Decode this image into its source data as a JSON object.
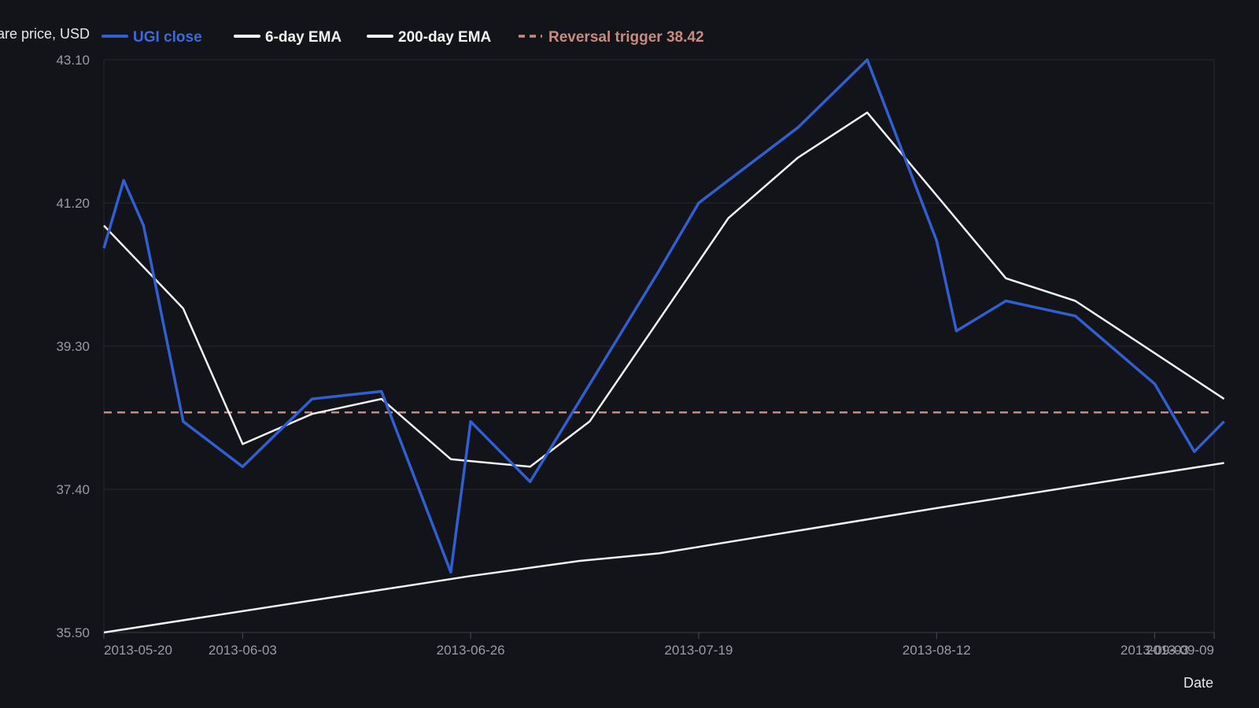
{
  "chart_data": {
    "type": "line",
    "title": "",
    "ylabel": "Share price, USD",
    "xlabel": "Date",
    "ylim": [
      35.5,
      43.1
    ],
    "yticks": [
      "35.50",
      "37.40",
      "39.30",
      "41.20",
      "43.10"
    ],
    "xlim": [
      "2013-05-20",
      "2013-09-09"
    ],
    "xticks": [
      "2013-05-20",
      "2013-06-03",
      "2013-06-26",
      "2013-07-19",
      "2013-08-12",
      "2013-09-03",
      "2013-09-09"
    ],
    "grid": true,
    "legend": "top",
    "reference_line": {
      "label": "Reversal trigger 38.42",
      "value": 38.42,
      "color": "#c98a7f",
      "style": "dashed"
    },
    "series": [
      {
        "name": "UGI close",
        "color": "#2f5fd0",
        "points": [
          [
            "2013-05-20",
            40.6
          ],
          [
            "2013-05-22",
            41.5
          ],
          [
            "2013-05-24",
            40.9
          ],
          [
            "2013-05-28",
            38.3
          ],
          [
            "2013-06-03",
            37.7
          ],
          [
            "2013-06-10",
            38.6
          ],
          [
            "2013-06-17",
            38.7
          ],
          [
            "2013-06-24",
            36.3
          ],
          [
            "2013-06-26",
            38.3
          ],
          [
            "2013-07-02",
            37.5
          ],
          [
            "2013-07-15",
            40.3
          ],
          [
            "2013-07-19",
            41.2
          ],
          [
            "2013-07-29",
            42.2
          ],
          [
            "2013-08-05",
            43.1
          ],
          [
            "2013-08-12",
            40.7
          ],
          [
            "2013-08-14",
            39.5
          ],
          [
            "2013-08-19",
            39.9
          ],
          [
            "2013-08-26",
            39.7
          ],
          [
            "2013-09-03",
            38.8
          ],
          [
            "2013-09-07",
            37.9
          ],
          [
            "2013-09-10",
            38.3
          ]
        ]
      },
      {
        "name": "6-day EMA",
        "color": "#f2f2f2",
        "points": [
          [
            "2013-05-20",
            40.9
          ],
          [
            "2013-05-28",
            39.8
          ],
          [
            "2013-06-03",
            38.0
          ],
          [
            "2013-06-10",
            38.4
          ],
          [
            "2013-06-17",
            38.6
          ],
          [
            "2013-06-24",
            37.8
          ],
          [
            "2013-07-02",
            37.7
          ],
          [
            "2013-07-08",
            38.3
          ],
          [
            "2013-07-22",
            41.0
          ],
          [
            "2013-07-29",
            41.8
          ],
          [
            "2013-08-05",
            42.4
          ],
          [
            "2013-08-12",
            41.3
          ],
          [
            "2013-08-19",
            40.2
          ],
          [
            "2013-08-26",
            39.9
          ],
          [
            "2013-09-10",
            38.6
          ]
        ]
      },
      {
        "name": "200-day EMA",
        "color": "#f2f2f2",
        "points": [
          [
            "2013-05-20",
            35.5
          ],
          [
            "2013-06-26",
            36.25
          ],
          [
            "2013-07-07",
            36.45
          ],
          [
            "2013-07-15",
            36.55
          ],
          [
            "2013-08-12",
            37.15
          ],
          [
            "2013-09-10",
            37.75
          ]
        ]
      }
    ]
  }
}
